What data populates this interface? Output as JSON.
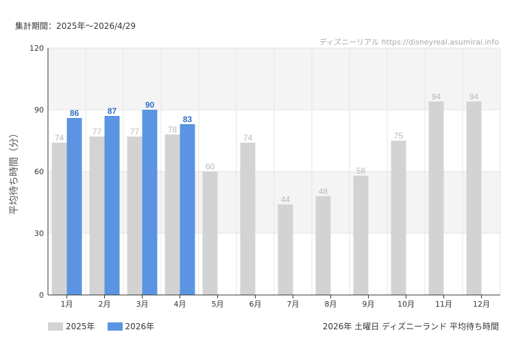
{
  "header": {
    "period_label": "集計期間：2025年～2026/4/29",
    "watermark": "ディズニーリアル https://disneyreal.asumirai.info"
  },
  "chart_data": {
    "type": "bar",
    "ylabel": "平均待ち時間（分）",
    "ylim": [
      0,
      120
    ],
    "yticks": [
      0,
      30,
      60,
      90,
      120
    ],
    "categories": [
      "1月",
      "2月",
      "3月",
      "4月",
      "5月",
      "6月",
      "7月",
      "8月",
      "9月",
      "10月",
      "11月",
      "12月"
    ],
    "series": [
      {
        "name": "2025年",
        "color": "#d3d3d3",
        "label_color": "#b8b8b8",
        "values": [
          74,
          77,
          77,
          78,
          60,
          74,
          44,
          48,
          58,
          75,
          94,
          94
        ]
      },
      {
        "name": "2026年",
        "color": "#5b94e3",
        "label_color": "#2f6fc9",
        "values": [
          86,
          87,
          90,
          83,
          null,
          null,
          null,
          null,
          null,
          null,
          null,
          null
        ]
      }
    ],
    "subtitle": "2026年 土曜日 ディズニーランド 平均待ち時間"
  }
}
